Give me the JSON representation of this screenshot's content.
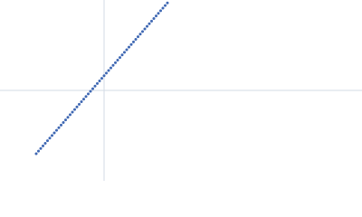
{
  "chart_data": {
    "type": "scatter",
    "color": "#3f68b3",
    "xlim": [
      -115,
      285
    ],
    "ylim": [
      -100,
      100
    ],
    "x": [
      -75,
      -72.5,
      -70,
      -67.5,
      -65,
      -62.5,
      -60,
      -57.5,
      -55,
      -52.5,
      -50,
      -47.5,
      -45,
      -42.5,
      -40,
      -37.5,
      -35,
      -32.5,
      -30,
      -27.5,
      -25,
      -22.5,
      -20,
      -17.5,
      -15,
      -12.5,
      -10,
      -7.5,
      -5,
      -2.5,
      0,
      2.5,
      5,
      7.5,
      10,
      12.5,
      15,
      17.5,
      20,
      22.5,
      25,
      27.5,
      30,
      32.5,
      35,
      37.5,
      40,
      42.5,
      45,
      47.5,
      50,
      52.5,
      55,
      57.5,
      60,
      62.5,
      65,
      67.5,
      70
    ],
    "values": [
      -70,
      -67.1,
      -64.3,
      -61.4,
      -58.5,
      -55.6,
      -52.8,
      -49.9,
      -47,
      -44.1,
      -41.3,
      -38.4,
      -35.5,
      -32.6,
      -29.8,
      -26.9,
      -24,
      -21.1,
      -18.3,
      -15.4,
      -12.5,
      -9.6,
      -6.8,
      -3.9,
      -1,
      1.9,
      4.8,
      7.6,
      10.5,
      13.4,
      16.3,
      19.1,
      22,
      24.9,
      27.8,
      30.6,
      33.5,
      36.4,
      39.3,
      42.1,
      45,
      47.9,
      50.8,
      53.6,
      56.5,
      59.4,
      62.3,
      65.1,
      68,
      70.9,
      73.8,
      76.6,
      79.5,
      82.4,
      85.3,
      88.1,
      91,
      93.9,
      96.8
    ]
  }
}
